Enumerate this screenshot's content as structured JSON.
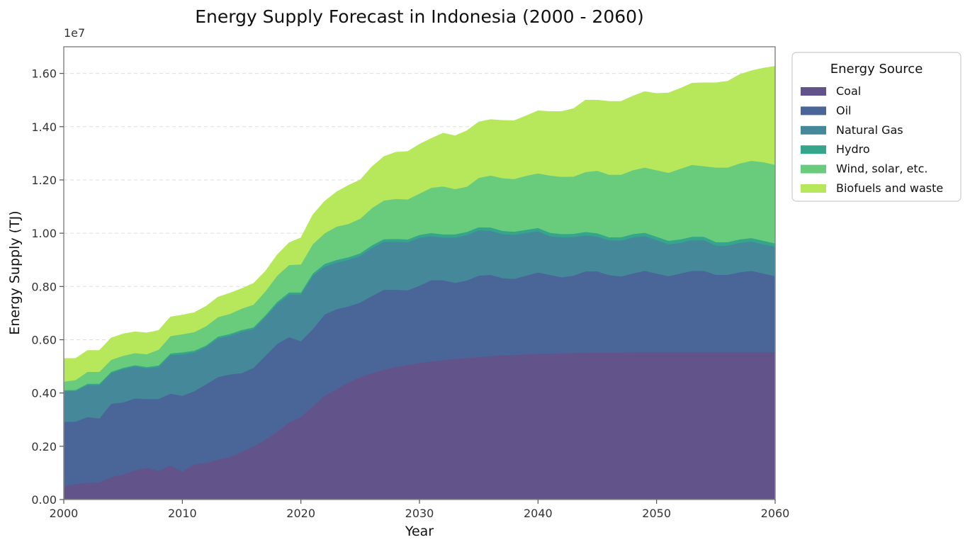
{
  "chart_data": {
    "type": "area",
    "title": "Energy Supply Forecast in Indonesia (2000 - 2060)",
    "xlabel": "Year",
    "ylabel": "Energy Supply (TJ)",
    "y_scale_note": "1e7",
    "xlim": [
      2000,
      2060
    ],
    "ylim": [
      0,
      17000000
    ],
    "x_ticks": [
      2000,
      2010,
      2020,
      2030,
      2040,
      2050,
      2060
    ],
    "x_tick_labels": [
      "2000",
      "2010",
      "2020",
      "2030",
      "2040",
      "2050",
      "2060"
    ],
    "y_ticks": [
      0,
      2000000,
      4000000,
      6000000,
      8000000,
      10000000,
      12000000,
      14000000,
      16000000
    ],
    "y_tick_labels": [
      "0.00",
      "0.20",
      "0.40",
      "0.60",
      "0.80",
      "1.00",
      "1.20",
      "1.40",
      "1.60"
    ],
    "grid": "horizontal dashed",
    "stacked": true,
    "legend": {
      "title": "Energy Source",
      "placement": "outside-right-top"
    },
    "x": [
      2000,
      2001,
      2002,
      2003,
      2004,
      2005,
      2006,
      2007,
      2008,
      2009,
      2010,
      2011,
      2012,
      2013,
      2014,
      2015,
      2016,
      2017,
      2018,
      2019,
      2020,
      2021,
      2022,
      2023,
      2024,
      2025,
      2026,
      2027,
      2028,
      2029,
      2030,
      2031,
      2032,
      2033,
      2034,
      2035,
      2036,
      2037,
      2038,
      2039,
      2040,
      2041,
      2042,
      2043,
      2044,
      2045,
      2046,
      2047,
      2048,
      2049,
      2050,
      2051,
      2052,
      2053,
      2054,
      2055,
      2056,
      2057,
      2058,
      2059,
      2060
    ],
    "series": [
      {
        "name": "Coal",
        "color": "#62548a",
        "values": [
          520000,
          580000,
          650000,
          650000,
          850000,
          950000,
          1100000,
          1200000,
          1080000,
          1280000,
          1050000,
          1320000,
          1380000,
          1500000,
          1600000,
          1800000,
          2000000,
          2250000,
          2550000,
          2900000,
          3100000,
          3500000,
          3900000,
          4150000,
          4400000,
          4600000,
          4750000,
          4880000,
          4980000,
          5060000,
          5130000,
          5190000,
          5240000,
          5290000,
          5330000,
          5360000,
          5390000,
          5420000,
          5440000,
          5460000,
          5480000,
          5490000,
          5500000,
          5510000,
          5520000,
          5520000,
          5530000,
          5530000,
          5540000,
          5540000,
          5540000,
          5540000,
          5540000,
          5540000,
          5540000,
          5540000,
          5540000,
          5540000,
          5540000,
          5540000,
          5540000
        ]
      },
      {
        "name": "Oil",
        "color": "#4a6699",
        "values": [
          2400000,
          2350000,
          2450000,
          2400000,
          2750000,
          2700000,
          2700000,
          2580000,
          2700000,
          2700000,
          2850000,
          2750000,
          2950000,
          3100000,
          3100000,
          2950000,
          2950000,
          3150000,
          3300000,
          3200000,
          2850000,
          2900000,
          3050000,
          3000000,
          2850000,
          2800000,
          2900000,
          3000000,
          2900000,
          2800000,
          2900000,
          3050000,
          3000000,
          2850000,
          2900000,
          3050000,
          3050000,
          2900000,
          2850000,
          2950000,
          3050000,
          2950000,
          2850000,
          2900000,
          3050000,
          3050000,
          2900000,
          2850000,
          2950000,
          3050000,
          2950000,
          2850000,
          2950000,
          3050000,
          3050000,
          2900000,
          2900000,
          3000000,
          3050000,
          2950000,
          2850000
        ]
      },
      {
        "name": "Natural Gas",
        "color": "#45889a",
        "values": [
          1150000,
          1150000,
          1200000,
          1250000,
          1150000,
          1250000,
          1200000,
          1150000,
          1200000,
          1450000,
          1550000,
          1450000,
          1400000,
          1450000,
          1450000,
          1550000,
          1450000,
          1450000,
          1500000,
          1600000,
          1750000,
          2000000,
          1800000,
          1750000,
          1750000,
          1750000,
          1800000,
          1800000,
          1800000,
          1800000,
          1800000,
          1650000,
          1600000,
          1700000,
          1700000,
          1700000,
          1650000,
          1650000,
          1650000,
          1600000,
          1550000,
          1450000,
          1500000,
          1450000,
          1350000,
          1300000,
          1300000,
          1350000,
          1350000,
          1300000,
          1250000,
          1200000,
          1150000,
          1150000,
          1150000,
          1100000,
          1100000,
          1100000,
          1100000,
          1100000,
          1100000
        ]
      },
      {
        "name": "Hydro",
        "color": "#35a58b",
        "values": [
          40000,
          40000,
          50000,
          50000,
          50000,
          50000,
          50000,
          50000,
          60000,
          60000,
          80000,
          70000,
          60000,
          70000,
          70000,
          70000,
          70000,
          70000,
          80000,
          80000,
          80000,
          90000,
          100000,
          100000,
          100000,
          100000,
          100000,
          100000,
          110000,
          110000,
          110000,
          120000,
          120000,
          120000,
          120000,
          120000,
          130000,
          120000,
          120000,
          120000,
          120000,
          130000,
          120000,
          120000,
          130000,
          130000,
          120000,
          120000,
          130000,
          130000,
          130000,
          130000,
          130000,
          130000,
          130000,
          130000,
          130000,
          130000,
          130000,
          130000,
          130000
        ]
      },
      {
        "name": "Wind, solar, etc.",
        "color": "#69cc7c",
        "values": [
          320000,
          370000,
          450000,
          450000,
          450000,
          450000,
          450000,
          480000,
          590000,
          650000,
          680000,
          700000,
          720000,
          730000,
          750000,
          800000,
          850000,
          900000,
          980000,
          1030000,
          1050000,
          1100000,
          1150000,
          1250000,
          1250000,
          1300000,
          1400000,
          1450000,
          1500000,
          1500000,
          1550000,
          1700000,
          1800000,
          1700000,
          1700000,
          1850000,
          1950000,
          1980000,
          1980000,
          2030000,
          2050000,
          2150000,
          2150000,
          2150000,
          2250000,
          2350000,
          2350000,
          2350000,
          2400000,
          2450000,
          2500000,
          2550000,
          2650000,
          2700000,
          2650000,
          2800000,
          2800000,
          2850000,
          2900000,
          2950000,
          2950000
        ]
      },
      {
        "name": "Biofuels and waste",
        "color": "#b7e75b",
        "values": [
          870000,
          810000,
          800000,
          800000,
          820000,
          820000,
          800000,
          800000,
          720000,
          720000,
          720000,
          730000,
          750000,
          750000,
          780000,
          750000,
          800000,
          750000,
          780000,
          830000,
          1000000,
          1100000,
          1200000,
          1300000,
          1450000,
          1450000,
          1550000,
          1650000,
          1750000,
          1800000,
          1850000,
          1850000,
          2000000,
          2000000,
          2100000,
          2100000,
          2100000,
          2170000,
          2190000,
          2250000,
          2350000,
          2400000,
          2450000,
          2550000,
          2700000,
          2650000,
          2750000,
          2750000,
          2780000,
          2850000,
          2880000,
          3000000,
          3020000,
          3070000,
          3130000,
          3180000,
          3240000,
          3340000,
          3380000,
          3530000,
          3700000
        ]
      }
    ]
  }
}
